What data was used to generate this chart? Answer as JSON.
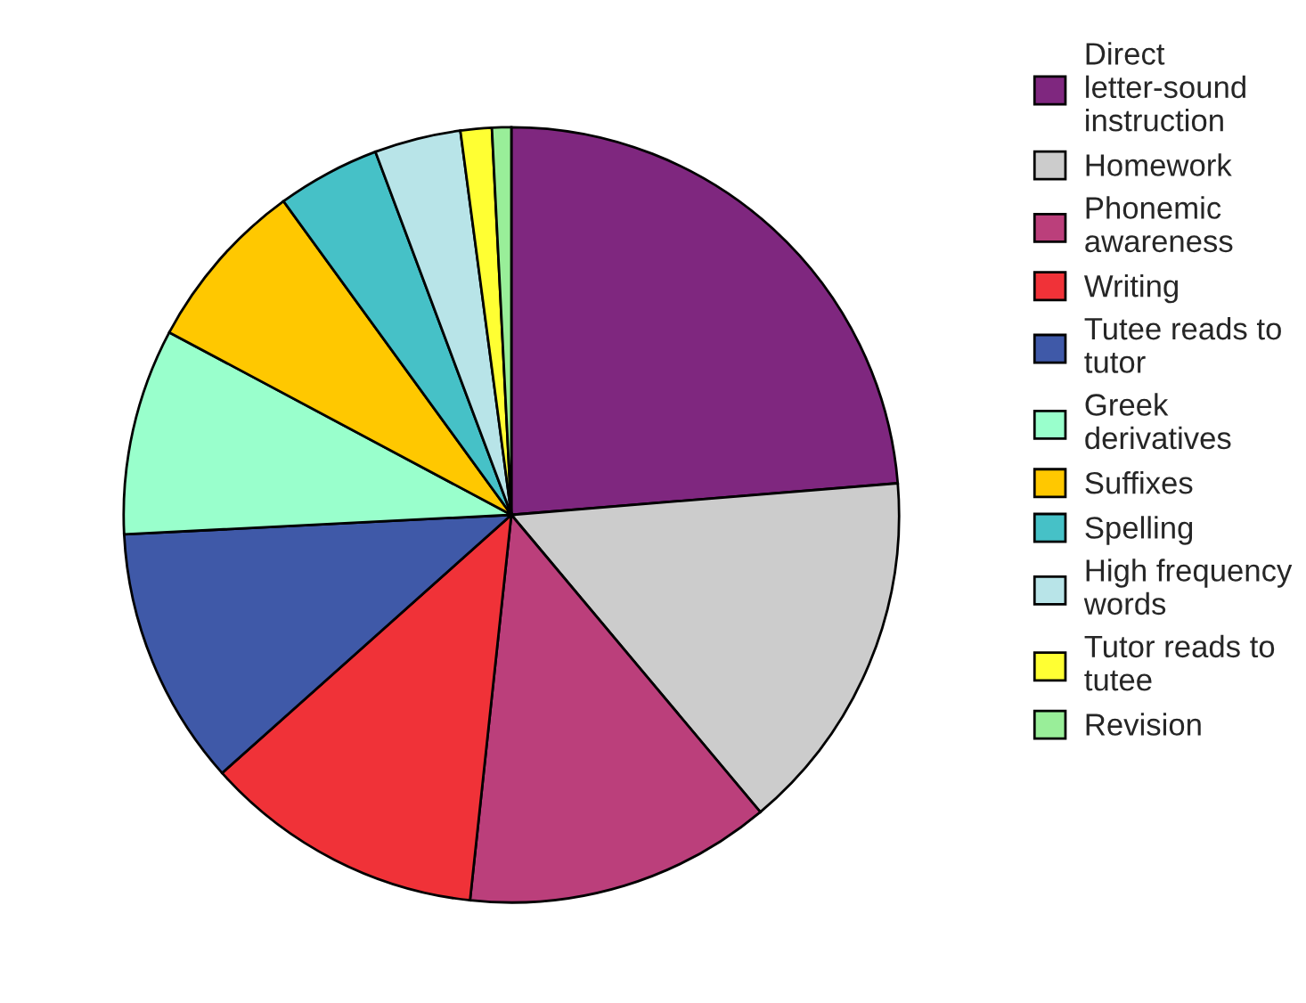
{
  "chart_data": {
    "type": "pie",
    "categories": [
      "Direct letter-sound instruction",
      "Homework",
      "Phonemic awareness",
      "Writing",
      "Tutee reads to tutor",
      "Greek derivatives",
      "Suffixes",
      "Spelling",
      "High frequency words",
      "Tutor reads to tutee",
      "Revision"
    ],
    "values": [
      23.7,
      15.2,
      12.8,
      11.7,
      10.8,
      8.6,
      7.2,
      4.3,
      3.6,
      1.3,
      0.8
    ],
    "colors": [
      "#7f277f",
      "#cccccc",
      "#bb3f7b",
      "#f03238",
      "#3f59a8",
      "#99ffcc",
      "#ffc800",
      "#46c1c7",
      "#b8e4e8",
      "#ffff33",
      "#99ee99"
    ],
    "legend": "right"
  }
}
